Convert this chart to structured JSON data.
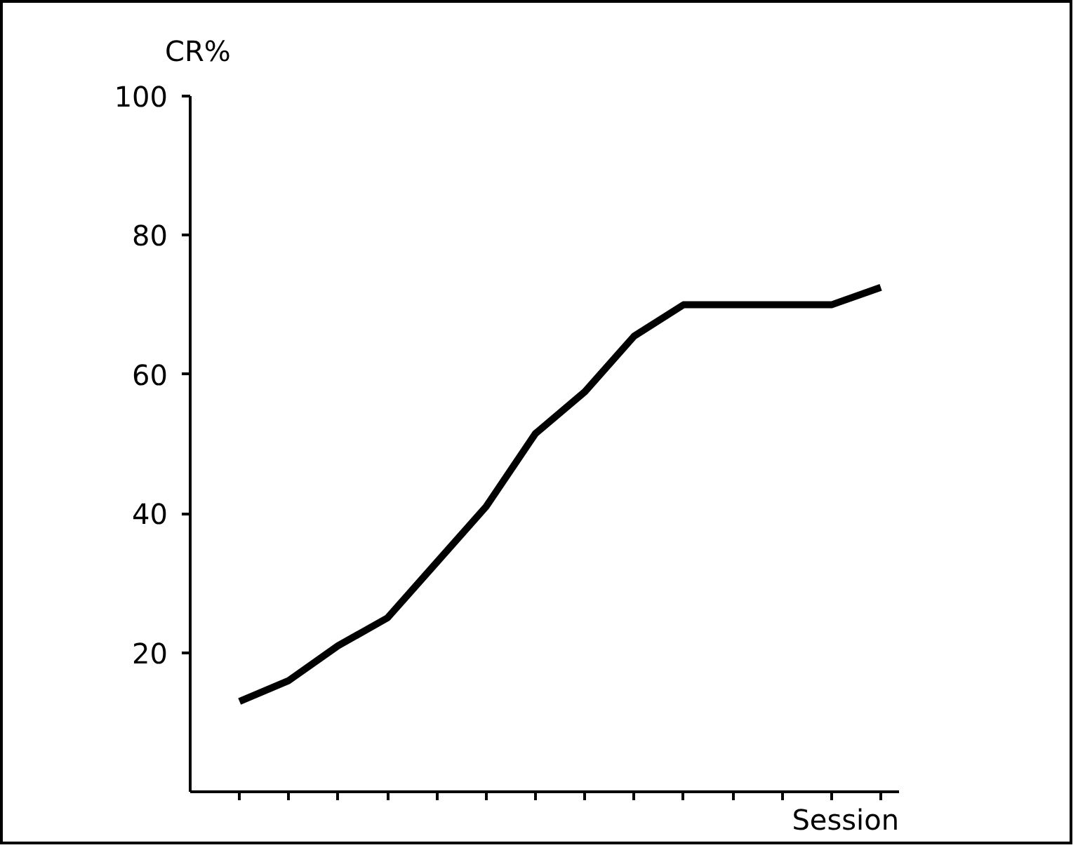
{
  "chart_data": {
    "type": "line",
    "xlabel": "Session",
    "ylabel": "CR%",
    "categories": [
      null,
      null,
      null,
      null,
      null,
      null,
      null,
      null,
      null,
      null,
      null,
      null,
      null,
      null
    ],
    "series": [
      {
        "color": "#000000",
        "values": [
          13,
          16,
          21,
          25,
          33,
          41,
          51.5,
          57.5,
          65.5,
          70,
          70,
          70,
          70,
          72.5
        ]
      }
    ],
    "ylim": [
      0,
      100
    ],
    "yticks": [
      20,
      40,
      60,
      80,
      100
    ],
    "tick_labels": "y",
    "grid": false,
    "marker": "none",
    "line_style": "solid"
  }
}
